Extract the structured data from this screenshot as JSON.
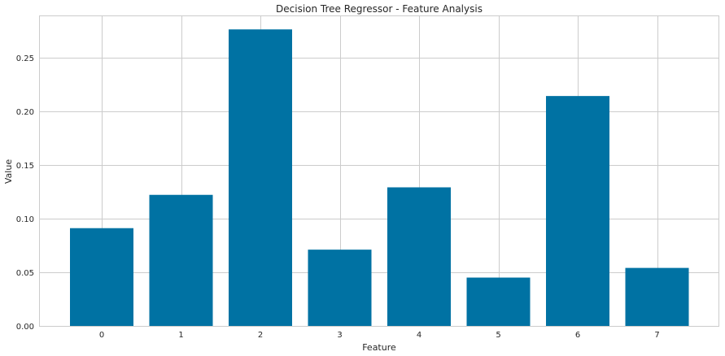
{
  "chart_data": {
    "type": "bar",
    "title": "Decision Tree Regressor - Feature Analysis",
    "xlabel": "Feature",
    "ylabel": "Value",
    "categories": [
      "0",
      "1",
      "2",
      "3",
      "4",
      "5",
      "6",
      "7"
    ],
    "values": [
      0.091,
      0.122,
      0.276,
      0.071,
      0.129,
      0.045,
      0.214,
      0.054
    ],
    "ylim": [
      0,
      0.289
    ],
    "yticks": [
      0.0,
      0.05,
      0.1,
      0.15,
      0.2,
      0.25
    ],
    "ytick_labels": [
      "0.00",
      "0.05",
      "0.10",
      "0.15",
      "0.20",
      "0.25"
    ],
    "bar_color": "#0072a3",
    "grid": true,
    "legend": "none"
  }
}
